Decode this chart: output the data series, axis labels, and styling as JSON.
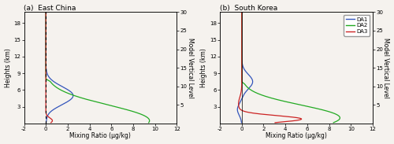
{
  "title_a": "(a)  East China",
  "title_b": "(b)  South Korea",
  "xlabel": "Mixing Ratio (μg/kg)",
  "ylabel_left": "Heights (km)",
  "ylabel_right": "Model Vertical Level",
  "xlim": [
    -2,
    12
  ],
  "xticks": [
    -2,
    0,
    2,
    4,
    6,
    8,
    10,
    12
  ],
  "ylim_km": [
    0,
    20
  ],
  "yticks_km": [
    3,
    6,
    9,
    12,
    15,
    18
  ],
  "ylim_level": [
    0,
    30
  ],
  "yticks_level": [
    5,
    10,
    15,
    20,
    25,
    30
  ],
  "colors": {
    "DA1": "#3355bb",
    "DA2": "#22aa22",
    "DA3": "#cc2222"
  },
  "legend_labels": [
    "DA1",
    "DA2",
    "DA3"
  ],
  "background": "#f5f2ee",
  "figsize": [
    5.0,
    1.83
  ],
  "dpi": 100
}
